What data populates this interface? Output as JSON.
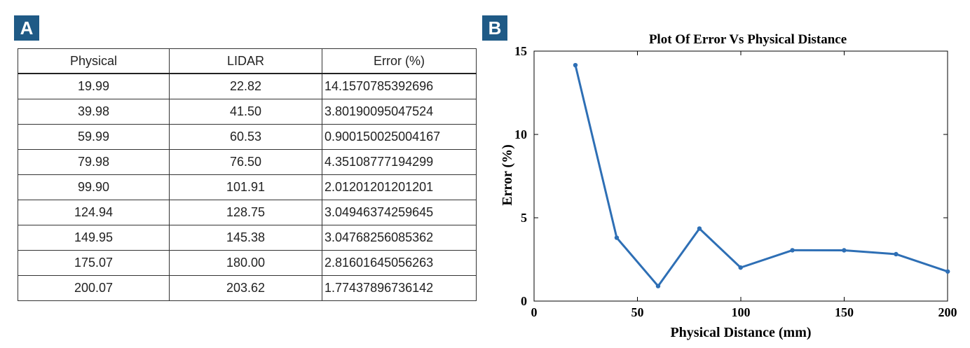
{
  "panel_a_label": "A",
  "panel_b_label": "B",
  "table": {
    "headers": [
      "Physical",
      "LIDAR",
      "Error (%)"
    ],
    "rows": [
      [
        "19.99",
        "22.82",
        "14.1570785392696"
      ],
      [
        "39.98",
        "41.50",
        "3.80190095047524"
      ],
      [
        "59.99",
        "60.53",
        "0.900150025004167"
      ],
      [
        "79.98",
        "76.50",
        "4.35108777194299"
      ],
      [
        "99.90",
        "101.91",
        "2.01201201201201"
      ],
      [
        "124.94",
        "128.75",
        "3.04946374259645"
      ],
      [
        "149.95",
        "145.38",
        "3.04768256085362"
      ],
      [
        "175.07",
        "180.00",
        "2.81601645056263"
      ],
      [
        "200.07",
        "203.62",
        "1.77437896736142"
      ]
    ]
  },
  "chart_data": {
    "type": "line",
    "title": "Plot Of Error Vs Physical Distance",
    "xlabel": "Physical Distance (mm)",
    "ylabel": "Error (%)",
    "xlim": [
      0,
      200
    ],
    "ylim": [
      0,
      15
    ],
    "xticks": [
      0,
      50,
      100,
      150,
      200
    ],
    "yticks": [
      0,
      5,
      10,
      15
    ],
    "grid": false,
    "line_color": "#2e6fb5",
    "x": [
      19.99,
      39.98,
      59.99,
      79.98,
      99.9,
      124.94,
      149.95,
      175.07,
      200.07
    ],
    "y": [
      14.1570785392696,
      3.80190095047524,
      0.900150025004167,
      4.35108777194299,
      2.01201201201201,
      3.04946374259645,
      3.04768256085362,
      2.81601645056263,
      1.77437896736142
    ]
  }
}
